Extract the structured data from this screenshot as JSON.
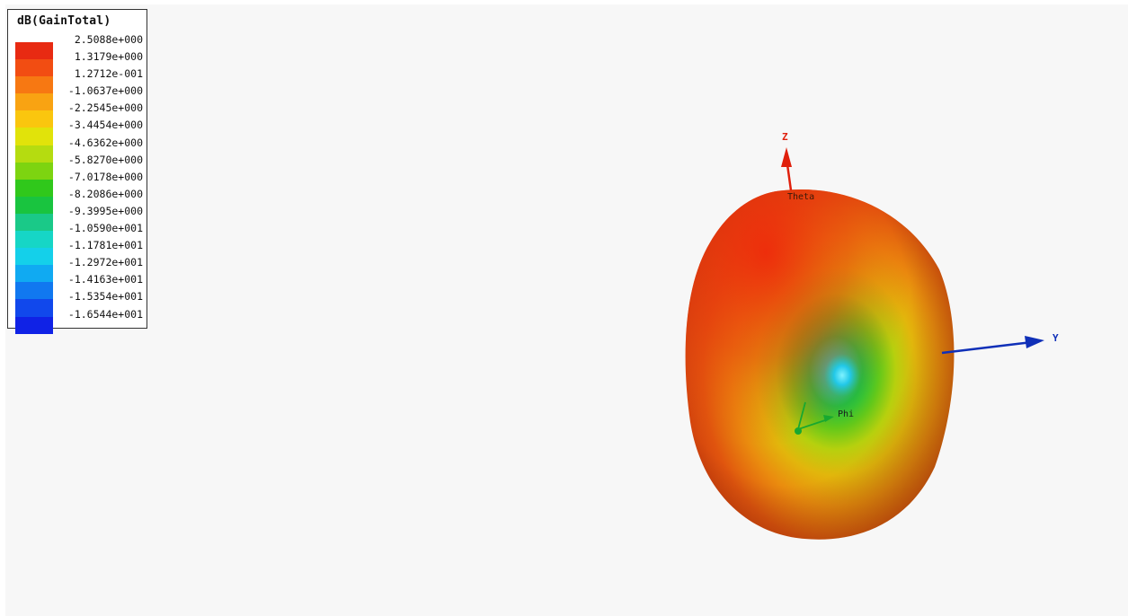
{
  "legend": {
    "title": "dB(GainTotal)",
    "entries": [
      {
        "value": "2.5088e+000",
        "color": "#e82a12"
      },
      {
        "value": "1.3179e+000",
        "color": "#f24d12"
      },
      {
        "value": "1.2712e-001",
        "color": "#f77812"
      },
      {
        "value": "-1.0637e+000",
        "color": "#f9a312"
      },
      {
        "value": "-2.2545e+000",
        "color": "#fac60e"
      },
      {
        "value": "-3.4454e+000",
        "color": "#e1e30a"
      },
      {
        "value": "-4.6362e+000",
        "color": "#b5dc10"
      },
      {
        "value": "-5.8270e+000",
        "color": "#7dd410"
      },
      {
        "value": "-7.0178e+000",
        "color": "#30c81b"
      },
      {
        "value": "-8.2086e+000",
        "color": "#19c43f"
      },
      {
        "value": "-9.3995e+000",
        "color": "#1ac988"
      },
      {
        "value": "-1.0590e+001",
        "color": "#16d6c6"
      },
      {
        "value": "-1.1781e+001",
        "color": "#14d0ea"
      },
      {
        "value": "-1.2972e+001",
        "color": "#10aaf2"
      },
      {
        "value": "-1.4163e+001",
        "color": "#1178f0"
      },
      {
        "value": "-1.5354e+001",
        "color": "#1148ec"
      },
      {
        "value": "-1.6544e+001",
        "color": "#1022e6"
      }
    ]
  },
  "axes": {
    "z_label": "Z",
    "y_label": "Y",
    "theta_label": "Theta",
    "phi_label": "Phi",
    "z_color": "#e0200c",
    "y_color": "#1030b8",
    "phi_color": "#18a830"
  }
}
